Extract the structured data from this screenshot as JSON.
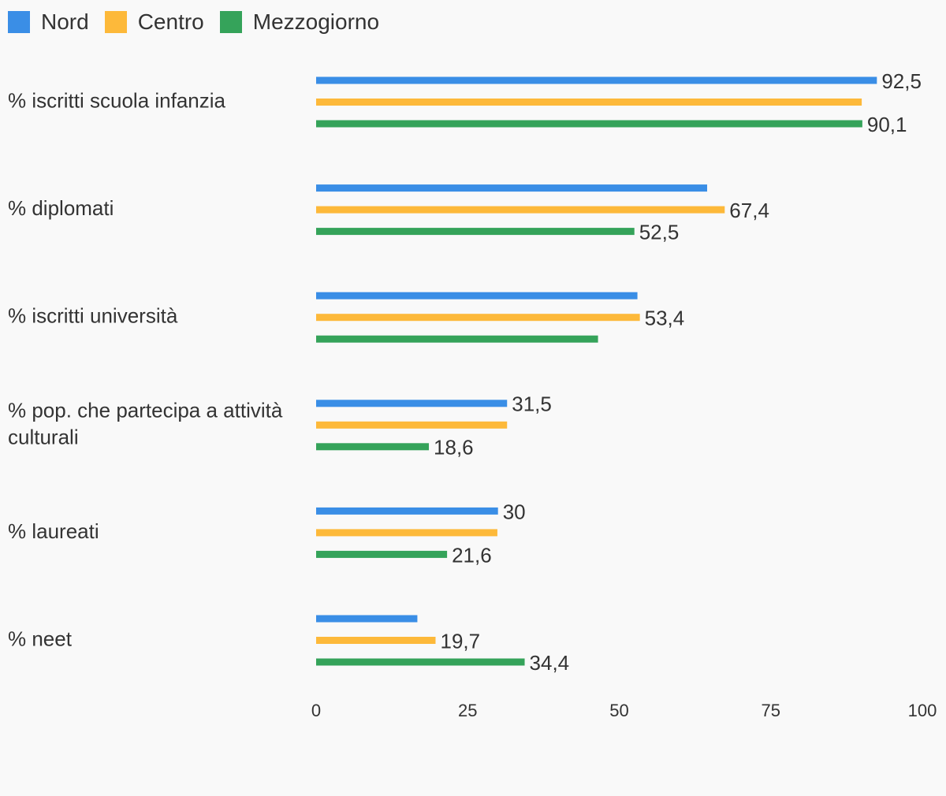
{
  "colors": {
    "Nord": "#3a8ee6",
    "Centro": "#fdb93a",
    "Mezzogiorno": "#35a35a",
    "text": "#333333",
    "background": "#f9f9f9"
  },
  "chart_data": {
    "type": "bar",
    "orientation": "horizontal",
    "categories": [
      "% iscritti scuola infanzia",
      "% diplomati",
      "% iscritti università",
      "% pop. che partecipa a attività culturali",
      "% laureati",
      "% neet"
    ],
    "series": [
      {
        "name": "Nord",
        "values": [
          92.5,
          64.5,
          53.0,
          31.5,
          30,
          16.7
        ],
        "labels": [
          "92,5",
          null,
          null,
          "31,5",
          "30",
          null
        ]
      },
      {
        "name": "Centro",
        "values": [
          90.0,
          67.4,
          53.4,
          31.5,
          29.9,
          19.7
        ],
        "labels": [
          null,
          "67,4",
          "53,4",
          null,
          null,
          "19,7"
        ]
      },
      {
        "name": "Mezzogiorno",
        "values": [
          90.1,
          52.5,
          46.5,
          18.6,
          21.6,
          34.4
        ],
        "labels": [
          "90,1",
          "52,5",
          null,
          "18,6",
          "21,6",
          "34,4"
        ]
      }
    ],
    "xlim": [
      0,
      100
    ],
    "xticks": [
      "0",
      "25",
      "50",
      "75",
      "100"
    ],
    "legend_position": "top-left",
    "grid": false
  }
}
